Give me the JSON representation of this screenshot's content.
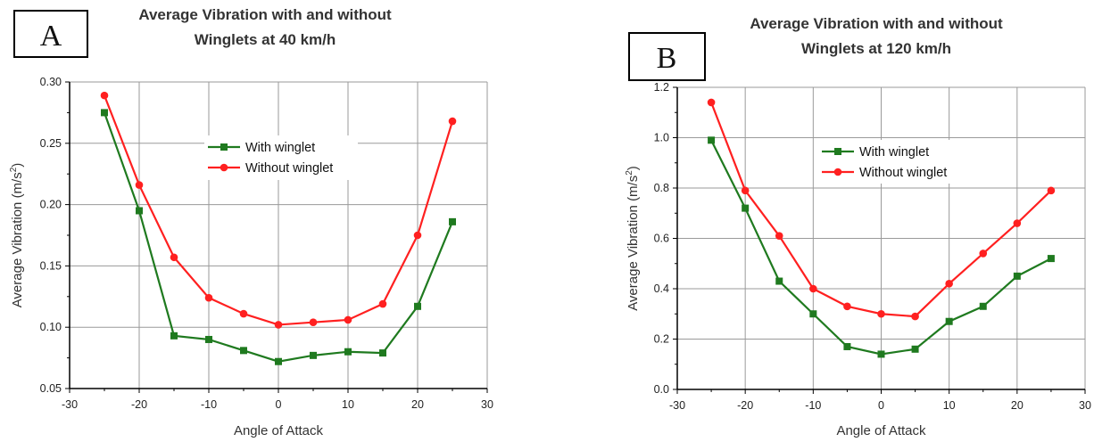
{
  "chart_data": [
    {
      "type": "line",
      "panel_label": "A",
      "title_lines": [
        "Average Vibration with and without",
        "Winglets at 40 km/h"
      ],
      "xlabel": "Angle of Attack",
      "ylabel_parts": [
        "Average Vibration (m/s",
        "2",
        ")"
      ],
      "xlim": [
        -30,
        30
      ],
      "ylim": [
        0.05,
        0.3
      ],
      "xticks": [
        -30,
        -20,
        -10,
        0,
        10,
        20,
        30
      ],
      "yticks": [
        "0.05",
        "0.10",
        "0.15",
        "0.20",
        "0.25",
        "0.30"
      ],
      "grid": true,
      "legend_position": "center",
      "x": [
        -25,
        -20,
        -15,
        -10,
        -5,
        0,
        5,
        10,
        15,
        20,
        25
      ],
      "series": [
        {
          "name": "With winglet",
          "color": "#1f7a1f",
          "marker": "square",
          "values": [
            0.275,
            0.195,
            0.093,
            0.09,
            0.081,
            0.072,
            0.077,
            0.08,
            0.079,
            0.117,
            0.186
          ]
        },
        {
          "name": "Without winglet",
          "color": "#ff2020",
          "marker": "circle",
          "values": [
            0.289,
            0.216,
            0.157,
            0.124,
            0.111,
            0.102,
            0.104,
            0.106,
            0.119,
            0.175,
            0.268
          ]
        }
      ]
    },
    {
      "type": "line",
      "panel_label": "B",
      "title_lines": [
        "Average Vibration with and without",
        "Winglets at 120 km/h"
      ],
      "xlabel": "Angle of Attack",
      "ylabel_parts": [
        "Average Vibration (m/s",
        "2",
        ")"
      ],
      "xlim": [
        -30,
        30
      ],
      "ylim": [
        0.0,
        1.2
      ],
      "xticks": [
        -30,
        -20,
        -10,
        0,
        10,
        20,
        30
      ],
      "yticks": [
        "0.0",
        "0.2",
        "0.4",
        "0.6",
        "0.8",
        "1.0",
        "1.2"
      ],
      "grid": true,
      "legend_position": "center",
      "x": [
        -25,
        -20,
        -15,
        -10,
        -5,
        0,
        5,
        10,
        15,
        20,
        25
      ],
      "series": [
        {
          "name": "With winglet",
          "color": "#1f7a1f",
          "marker": "square",
          "values": [
            0.99,
            0.72,
            0.43,
            0.3,
            0.17,
            0.14,
            0.16,
            0.27,
            0.33,
            0.45,
            0.52
          ]
        },
        {
          "name": "Without winglet",
          "color": "#ff2020",
          "marker": "circle",
          "values": [
            1.14,
            0.79,
            0.61,
            0.4,
            0.33,
            0.3,
            0.29,
            0.42,
            0.54,
            0.66,
            0.79
          ]
        }
      ]
    }
  ]
}
